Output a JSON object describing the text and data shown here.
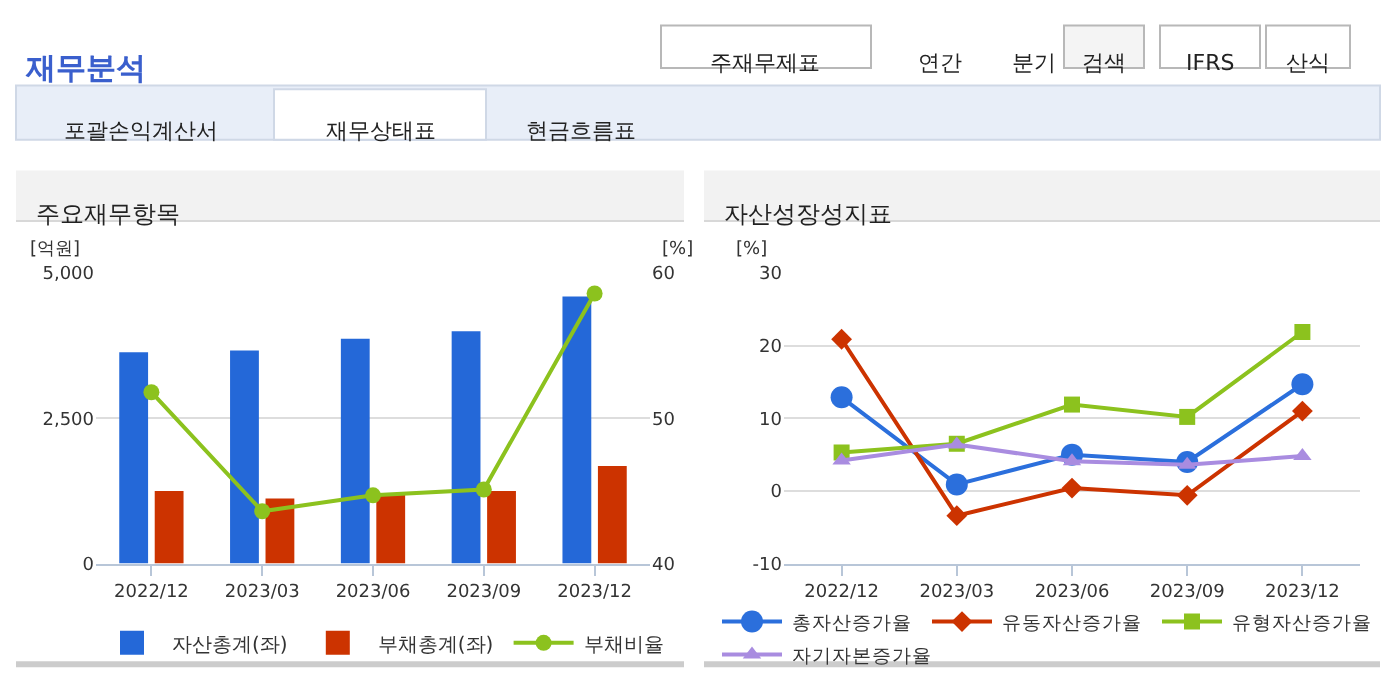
{
  "chart_data": [
    {
      "type": "other",
      "title": "재무분석",
      "annotations": [
        "주재무제표",
        "연간",
        "분기",
        "검색",
        "IFRS",
        "산식",
        "포괄손익계산서",
        "재무상태표",
        "현금흐름표"
      ]
    },
    {
      "type": "bar",
      "title": "주요재무항목",
      "ylabel": "[억원]",
      "y2label": "[%]",
      "categories": [
        "2022/12",
        "2023/03",
        "2023/06",
        "2023/09",
        "2023/12"
      ],
      "series": [
        {
          "name": "자산총계(좌)",
          "color": "#2468d8",
          "values": [
            3640,
            3670,
            3870,
            4000,
            4600
          ]
        },
        {
          "name": "부채총계(좌)",
          "color": "#cc3300",
          "values": [
            1250,
            1120,
            1180,
            1250,
            1680
          ]
        },
        {
          "name": "부채비율",
          "type": "line",
          "axis": "y2",
          "marker": "circle",
          "color": "#8cc21e",
          "values": [
            51.8,
            43.6,
            44.7,
            45.1,
            58.6
          ]
        }
      ],
      "ylim": [
        0,
        5000
      ],
      "yticks": [
        0,
        {
          "value": 2500,
          "label": "2,500"
        },
        {
          "value": 5000,
          "label": "5,000"
        }
      ],
      "y2lim": [
        40,
        60
      ],
      "y2ticks": [
        40,
        50,
        60
      ],
      "grid": "y",
      "legend": "bottom"
    },
    {
      "type": "line",
      "title": "자산성장성지표",
      "ylabel": "[%]",
      "categories": [
        "2022/12",
        "2023/03",
        "2023/06",
        "2023/09",
        "2023/12"
      ],
      "series": [
        {
          "name": "총자산증가율",
          "marker": "circle",
          "color": "#2b6fdc",
          "values": [
            12.9,
            0.9,
            5.0,
            4.0,
            14.7
          ]
        },
        {
          "name": "유동자산증가율",
          "marker": "diamond",
          "color": "#cc3300",
          "values": [
            20.9,
            -3.4,
            0.4,
            -0.6,
            11.0
          ]
        },
        {
          "name": "유형자산증가율",
          "marker": "square",
          "color": "#8cc21e",
          "values": [
            5.3,
            6.5,
            11.9,
            10.2,
            21.9
          ]
        },
        {
          "name": "자기자본증가율",
          "marker": "triangle",
          "color": "#a98ce0",
          "values": [
            4.2,
            6.4,
            4.1,
            3.6,
            4.8
          ]
        }
      ],
      "ylim": [
        -10,
        30
      ],
      "yticks": [
        -10,
        0,
        10,
        20,
        30
      ],
      "grid": "y",
      "legend": "bottom"
    }
  ]
}
